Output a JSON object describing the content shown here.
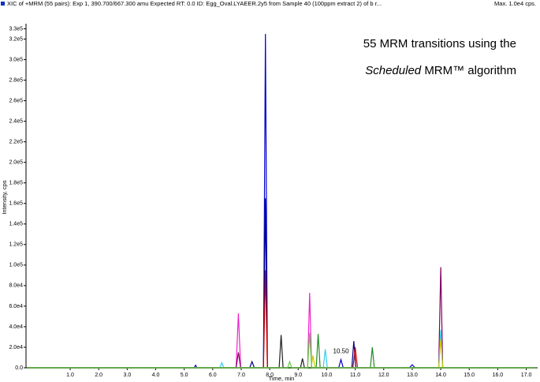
{
  "chart_data": {
    "type": "line",
    "title": "XIC of +MRM (55 pairs): Exp 1, 390.700/667.300 amu Expected RT: 0.0 ID: Egg_Oval.LYAEER.2y5 from Sample 40 (100ppm extract 2) of b r...",
    "max_label": "Max. 1.0e4 cps.",
    "annotation": {
      "line1": "55 MRM transitions using the",
      "line2_italic": "Scheduled",
      "line2_rest": "MRM™ algorithm"
    },
    "peak_label": {
      "text": "10.50",
      "x": 10.5,
      "y": 8000
    },
    "xlabel": "Time, min",
    "ylabel": "Intensity, cps",
    "xlim": [
      -0.55,
      17.4
    ],
    "ylim": [
      0,
      335000
    ],
    "xticks": [
      {
        "value": 1,
        "label": "1.0"
      },
      {
        "value": 2,
        "label": "2.0"
      },
      {
        "value": 3,
        "label": "3.0"
      },
      {
        "value": 4,
        "label": "4.0"
      },
      {
        "value": 5,
        "label": "5.0"
      },
      {
        "value": 6,
        "label": "6.0"
      },
      {
        "value": 7,
        "label": "7.0"
      },
      {
        "value": 8,
        "label": "8.0"
      },
      {
        "value": 9,
        "label": "9.0"
      },
      {
        "value": 10,
        "label": "10.0"
      },
      {
        "value": 11,
        "label": "11.0"
      },
      {
        "value": 12,
        "label": "12.0"
      },
      {
        "value": 13,
        "label": "13.0"
      },
      {
        "value": 14,
        "label": "14.0"
      },
      {
        "value": 15,
        "label": "15.0"
      },
      {
        "value": 16,
        "label": "16.0"
      },
      {
        "value": 17,
        "label": "17.0"
      }
    ],
    "yticks": [
      {
        "value": 0,
        "label": "0.0"
      },
      {
        "value": 20000,
        "label": "2.0e4"
      },
      {
        "value": 40000,
        "label": "4.0e4"
      },
      {
        "value": 60000,
        "label": "6.0e4"
      },
      {
        "value": 80000,
        "label": "8.0e4"
      },
      {
        "value": 100000,
        "label": "1.0e5"
      },
      {
        "value": 120000,
        "label": "1.2e5"
      },
      {
        "value": 140000,
        "label": "1.4e5"
      },
      {
        "value": 160000,
        "label": "1.6e5"
      },
      {
        "value": 180000,
        "label": "1.8e5"
      },
      {
        "value": 200000,
        "label": "2.0e5"
      },
      {
        "value": 220000,
        "label": "2.2e5"
      },
      {
        "value": 240000,
        "label": "2.4e5"
      },
      {
        "value": 260000,
        "label": "2.6e5"
      },
      {
        "value": 280000,
        "label": "2.8e5"
      },
      {
        "value": 300000,
        "label": "3.0e5"
      },
      {
        "value": 320000,
        "label": "3.2e5"
      },
      {
        "value": 330000,
        "label": "3.3e5"
      }
    ],
    "series": [
      {
        "color": "#0000cc",
        "x": [
          -0.5,
          5.35,
          5.4,
          5.45,
          7.78,
          7.85,
          7.92,
          10.42,
          10.5,
          10.58,
          12.9,
          13.0,
          13.1,
          17.3
        ],
        "values": [
          0,
          0,
          2500,
          0,
          0,
          325000,
          0,
          0,
          8000,
          0,
          0,
          3000,
          0,
          0
        ]
      },
      {
        "color": "#000080",
        "x": [
          -0.5,
          7.3,
          7.38,
          7.46,
          7.78,
          7.85,
          7.92,
          10.88,
          10.95,
          11.02,
          17.3
        ],
        "values": [
          0,
          0,
          6000,
          0,
          0,
          165000,
          0,
          0,
          26000,
          0,
          0
        ]
      },
      {
        "color": "#cc0000",
        "x": [
          -0.5,
          7.78,
          7.85,
          7.92,
          10.92,
          11.0,
          11.08,
          17.3
        ],
        "values": [
          0,
          0,
          95000,
          0,
          0,
          20000,
          0,
          0
        ]
      },
      {
        "color": "#ee22cc",
        "x": [
          -0.5,
          6.82,
          6.9,
          6.98,
          9.33,
          9.4,
          9.47,
          17.3
        ],
        "values": [
          0,
          0,
          53000,
          0,
          0,
          73000,
          0,
          0
        ]
      },
      {
        "color": "#800060",
        "x": [
          -0.5,
          6.82,
          6.9,
          6.98,
          13.93,
          14.0,
          14.07,
          17.3
        ],
        "values": [
          0,
          0,
          15000,
          0,
          0,
          98000,
          0,
          0
        ]
      },
      {
        "color": "#33ccee",
        "x": [
          -0.5,
          6.25,
          6.32,
          6.39,
          9.88,
          9.95,
          10.02,
          13.93,
          14.0,
          14.07,
          17.3
        ],
        "values": [
          0,
          0,
          5000,
          0,
          0,
          18000,
          0,
          0,
          37000,
          0,
          0
        ]
      },
      {
        "color": "#cccc00",
        "x": [
          -0.5,
          9.45,
          9.52,
          9.59,
          13.93,
          14.0,
          14.07,
          17.3
        ],
        "values": [
          0,
          0,
          12000,
          0,
          0,
          28000,
          0,
          0
        ]
      },
      {
        "color": "#202020",
        "x": [
          -0.5,
          8.33,
          8.4,
          8.47,
          9.08,
          9.15,
          9.22,
          17.3
        ],
        "values": [
          0,
          0,
          32000,
          0,
          0,
          9000,
          0,
          0
        ]
      },
      {
        "color": "#228822",
        "x": [
          -0.5,
          9.63,
          9.7,
          9.77,
          11.53,
          11.6,
          11.67,
          17.3
        ],
        "values": [
          0,
          0,
          33000,
          0,
          0,
          20000,
          0,
          0
        ]
      },
      {
        "color": "#66cc44",
        "x": [
          -0.5,
          8.63,
          8.7,
          8.77,
          9.33,
          9.4,
          9.47,
          17.3
        ],
        "values": [
          0,
          0,
          6000,
          0,
          0,
          34000,
          0,
          0
        ]
      }
    ]
  }
}
